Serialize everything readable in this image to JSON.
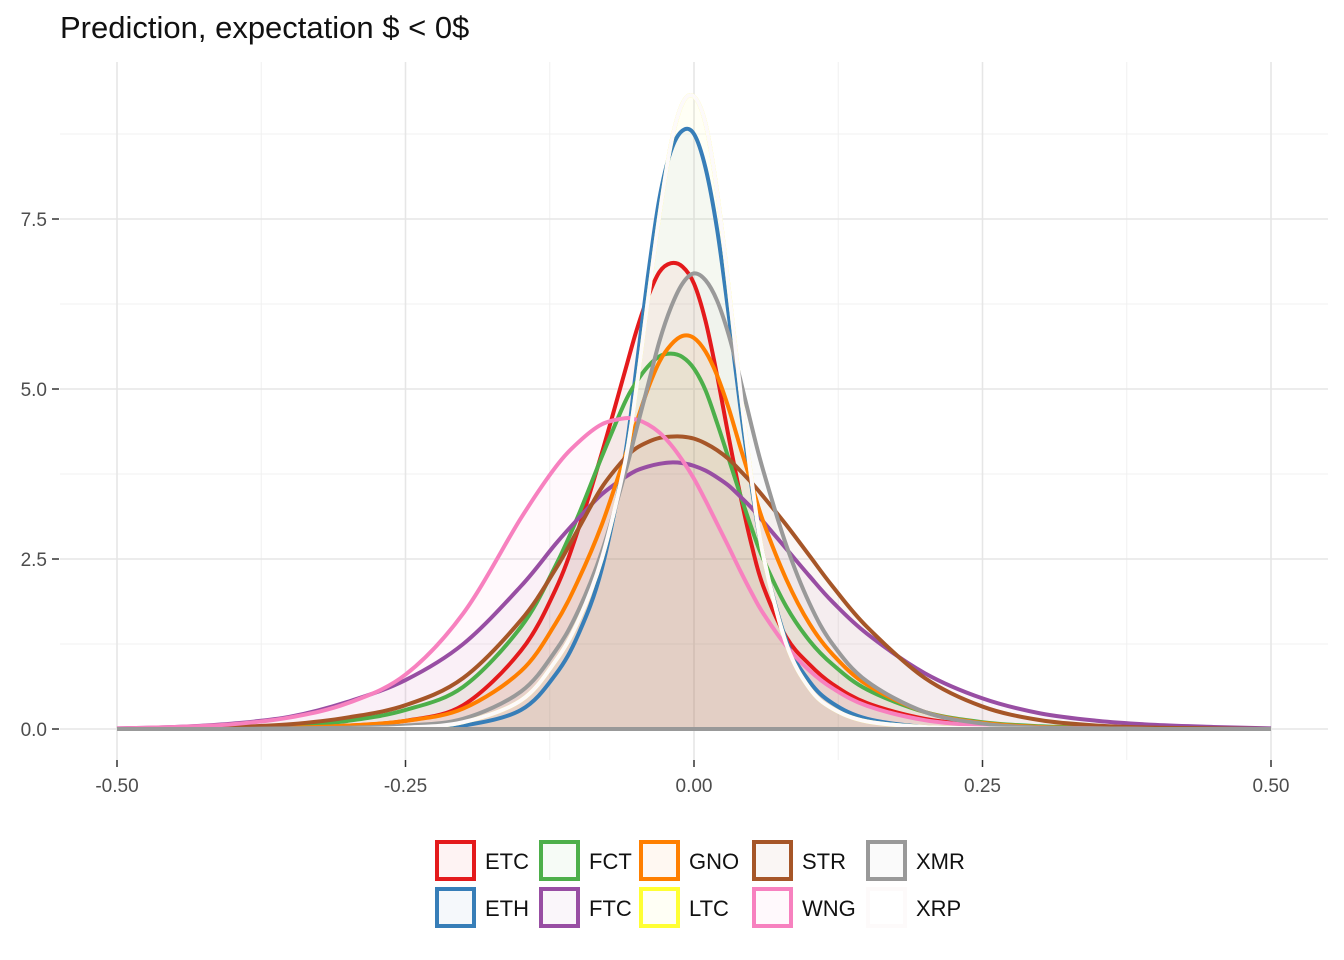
{
  "chart_data": {
    "type": "area",
    "title": "Prediction, expectation $ < 0$",
    "xlabel": "",
    "ylabel": "",
    "xlim": [
      -0.5,
      0.5
    ],
    "ylim": [
      0,
      9.6
    ],
    "x_ticks": [
      -0.5,
      -0.25,
      0.0,
      0.25,
      0.5
    ],
    "x_tick_labels": [
      "-0.50",
      "-0.25",
      "0.00",
      "0.25",
      "0.50"
    ],
    "y_ticks": [
      0.0,
      2.5,
      5.0,
      7.5
    ],
    "y_tick_labels": [
      "0.0",
      "2.5",
      "5.0",
      "7.5"
    ],
    "grid": true,
    "legend_position": "bottom",
    "x": [
      -0.5,
      -0.45,
      -0.4,
      -0.35,
      -0.3,
      -0.25,
      -0.2,
      -0.15,
      -0.12,
      -0.1,
      -0.08,
      -0.06,
      -0.05,
      -0.04,
      -0.03,
      -0.02,
      -0.01,
      0.0,
      0.01,
      0.02,
      0.03,
      0.04,
      0.05,
      0.06,
      0.08,
      0.1,
      0.12,
      0.15,
      0.2,
      0.25,
      0.3,
      0.35,
      0.4,
      0.45,
      0.5
    ],
    "series": [
      {
        "name": "ETC",
        "color": "#e41a1c",
        "values": [
          0,
          0,
          0.01,
          0.02,
          0.05,
          0.12,
          0.35,
          1.15,
          2.05,
          2.95,
          4.05,
          5.25,
          5.85,
          6.35,
          6.72,
          6.85,
          6.8,
          6.55,
          6.0,
          5.2,
          4.3,
          3.45,
          2.7,
          2.1,
          1.35,
          0.95,
          0.66,
          0.38,
          0.15,
          0.06,
          0.03,
          0.01,
          0,
          0,
          0
        ]
      },
      {
        "name": "ETH",
        "color": "#377eb8",
        "values": [
          0,
          0,
          0,
          0,
          0,
          0.01,
          0.05,
          0.28,
          0.8,
          1.4,
          2.35,
          4.0,
          5.3,
          6.65,
          7.8,
          8.5,
          8.8,
          8.75,
          8.25,
          7.35,
          6.1,
          4.75,
          3.55,
          2.55,
          1.3,
          0.7,
          0.38,
          0.15,
          0.03,
          0.01,
          0,
          0,
          0,
          0,
          0
        ]
      },
      {
        "name": "FCT",
        "color": "#4daf4a",
        "values": [
          0,
          0.01,
          0.02,
          0.05,
          0.12,
          0.28,
          0.62,
          1.5,
          2.4,
          3.15,
          4.0,
          4.8,
          5.1,
          5.33,
          5.48,
          5.52,
          5.47,
          5.3,
          4.98,
          4.5,
          3.98,
          3.45,
          2.95,
          2.5,
          1.8,
          1.3,
          0.95,
          0.58,
          0.25,
          0.1,
          0.04,
          0.02,
          0.01,
          0,
          0
        ]
      },
      {
        "name": "FTC",
        "color": "#984ea3",
        "values": [
          0.01,
          0.03,
          0.08,
          0.18,
          0.4,
          0.72,
          1.25,
          2.1,
          2.72,
          3.1,
          3.45,
          3.7,
          3.8,
          3.86,
          3.9,
          3.92,
          3.91,
          3.87,
          3.8,
          3.7,
          3.58,
          3.42,
          3.25,
          3.05,
          2.65,
          2.25,
          1.87,
          1.4,
          0.82,
          0.45,
          0.23,
          0.12,
          0.06,
          0.03,
          0.01
        ]
      },
      {
        "name": "GNO",
        "color": "#ff7f00",
        "values": [
          0,
          0,
          0.01,
          0.02,
          0.05,
          0.12,
          0.3,
          0.85,
          1.55,
          2.2,
          3.0,
          4.0,
          4.5,
          5.0,
          5.4,
          5.65,
          5.78,
          5.75,
          5.55,
          5.2,
          4.72,
          4.15,
          3.6,
          3.05,
          2.2,
          1.55,
          1.1,
          0.65,
          0.25,
          0.09,
          0.03,
          0.01,
          0,
          0,
          0
        ]
      },
      {
        "name": "LTC",
        "color": "#ffff33",
        "values": [
          0,
          0,
          0,
          0,
          0,
          0.02,
          0.1,
          0.42,
          1.0,
          1.6,
          2.5,
          3.9,
          5.0,
          6.3,
          7.55,
          8.6,
          9.2,
          9.3,
          8.9,
          7.9,
          6.5,
          5.0,
          3.65,
          2.55,
          1.25,
          0.6,
          0.3,
          0.11,
          0.03,
          0.01,
          0,
          0,
          0,
          0,
          0
        ]
      },
      {
        "name": "STR",
        "color": "#a65628",
        "values": [
          0,
          0.01,
          0.03,
          0.07,
          0.17,
          0.35,
          0.75,
          1.6,
          2.35,
          2.95,
          3.55,
          3.98,
          4.13,
          4.22,
          4.28,
          4.3,
          4.3,
          4.27,
          4.2,
          4.1,
          3.97,
          3.8,
          3.62,
          3.42,
          3.0,
          2.55,
          2.1,
          1.5,
          0.75,
          0.33,
          0.13,
          0.05,
          0.02,
          0.01,
          0
        ]
      },
      {
        "name": "WNG",
        "color": "#f781bf",
        "values": [
          0.01,
          0.03,
          0.07,
          0.17,
          0.38,
          0.8,
          1.7,
          3.1,
          3.85,
          4.22,
          4.48,
          4.57,
          4.55,
          4.48,
          4.36,
          4.18,
          3.95,
          3.68,
          3.36,
          3.02,
          2.68,
          2.33,
          2.0,
          1.7,
          1.22,
          0.86,
          0.6,
          0.34,
          0.13,
          0.05,
          0.02,
          0.01,
          0,
          0,
          0
        ]
      },
      {
        "name": "XMR",
        "color": "#999999",
        "values": [
          0,
          0,
          0,
          0.01,
          0.02,
          0.05,
          0.15,
          0.55,
          1.15,
          1.75,
          2.6,
          3.75,
          4.4,
          5.05,
          5.7,
          6.2,
          6.55,
          6.7,
          6.6,
          6.3,
          5.8,
          5.15,
          4.45,
          3.8,
          2.7,
          1.85,
          1.25,
          0.7,
          0.25,
          0.08,
          0.02,
          0.01,
          0,
          0,
          0
        ]
      },
      {
        "name": "XRP",
        "color": "#fdfafa",
        "values": [
          0,
          0,
          0,
          0,
          0,
          0.02,
          0.1,
          0.42,
          1.0,
          1.6,
          2.5,
          3.9,
          5.0,
          6.3,
          7.55,
          8.6,
          9.2,
          9.3,
          8.9,
          7.9,
          6.5,
          5.0,
          3.65,
          2.55,
          1.25,
          0.6,
          0.3,
          0.11,
          0.03,
          0.01,
          0,
          0,
          0,
          0,
          0
        ]
      }
    ]
  }
}
